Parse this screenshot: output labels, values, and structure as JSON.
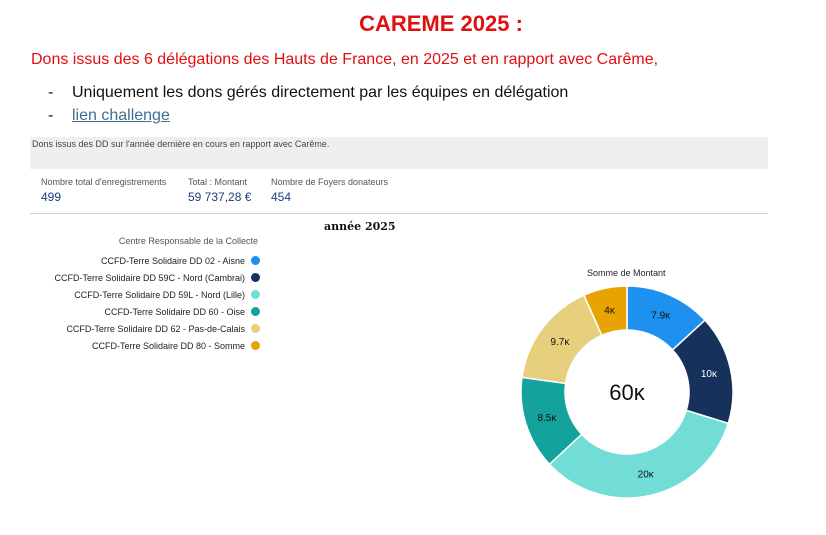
{
  "header": {
    "title": "CAREME 2025 :",
    "subtitle": "Dons issus des 6 délégations des Hauts de France, en 2025 et en rapport avec Carême,",
    "bullets": [
      {
        "dash": "-",
        "text": "Uniquement les dons gérés directement par les équipes en délégation"
      },
      {
        "dash": "-",
        "text": "lien challenge"
      }
    ]
  },
  "report": {
    "description": "Dons issus des DD sur l'année dernière en cours en rapport avec Carême."
  },
  "kpis": [
    {
      "label": "Nombre total d'enregistrements",
      "value": "499"
    },
    {
      "label": "Total : Montant",
      "value": "59 737,28 €"
    },
    {
      "label": "Nombre de Foyers donateurs",
      "value": "454"
    }
  ],
  "chart_data": {
    "type": "pie",
    "title": "année 2025",
    "legend_title": "Centre Responsable de la Collecte",
    "measure_label": "Somme de Montant",
    "center_label": "60ĸ",
    "legend_position": "left",
    "categories": [
      "CCFD-Terre Solidaire DD 02 - Aisne",
      "CCFD-Terre Solidaire DD 59C - Nord (Cambrai)",
      "CCFD-Terre Solidaire DD 59L - Nord (Lille)",
      "CCFD-Terre Solidaire DD 60 - Oise",
      "CCFD-Terre Solidaire DD 62 - Pas-de-Calais",
      "CCFD-Terre Solidaire DD 80 - Somme"
    ],
    "values": [
      7900,
      10000,
      20000,
      8500,
      9700,
      4000
    ],
    "data_labels": [
      "7.9ĸ",
      "10ĸ",
      "20ĸ",
      "8.5ĸ",
      "9.7ĸ",
      "4ĸ"
    ],
    "colors": [
      "#1e90f0",
      "#16325c",
      "#72ddd7",
      "#13a39c",
      "#e6d07e",
      "#e8a202"
    ]
  }
}
